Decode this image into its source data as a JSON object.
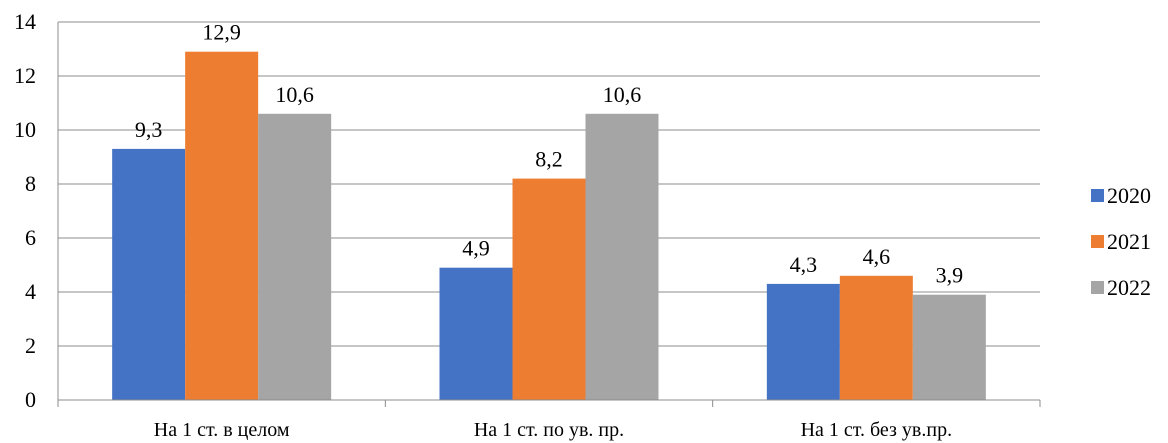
{
  "chart_data": {
    "type": "bar",
    "categories": [
      "На 1 ст. в целом",
      "На 1 ст. по ув. пр.",
      "На 1 ст. без ув.пр."
    ],
    "series": [
      {
        "name": "2020",
        "values": [
          9.3,
          4.9,
          4.3
        ],
        "labels": [
          "9,3",
          "4,9",
          "4,3"
        ],
        "color": "#4472C4"
      },
      {
        "name": "2021",
        "values": [
          12.9,
          8.2,
          4.6
        ],
        "labels": [
          "12,9",
          "8,2",
          "4,6"
        ],
        "color": "#ED7D31"
      },
      {
        "name": "2022",
        "values": [
          10.6,
          10.6,
          3.9
        ],
        "labels": [
          "10,6",
          "10,6",
          "3,9"
        ],
        "color": "#A5A5A5"
      }
    ],
    "ylim": [
      0,
      14
    ],
    "yticks": [
      0,
      2,
      4,
      6,
      8,
      10,
      12,
      14
    ],
    "grid": true,
    "legend_position": "right",
    "title": "",
    "xlabel": "",
    "ylabel": ""
  }
}
